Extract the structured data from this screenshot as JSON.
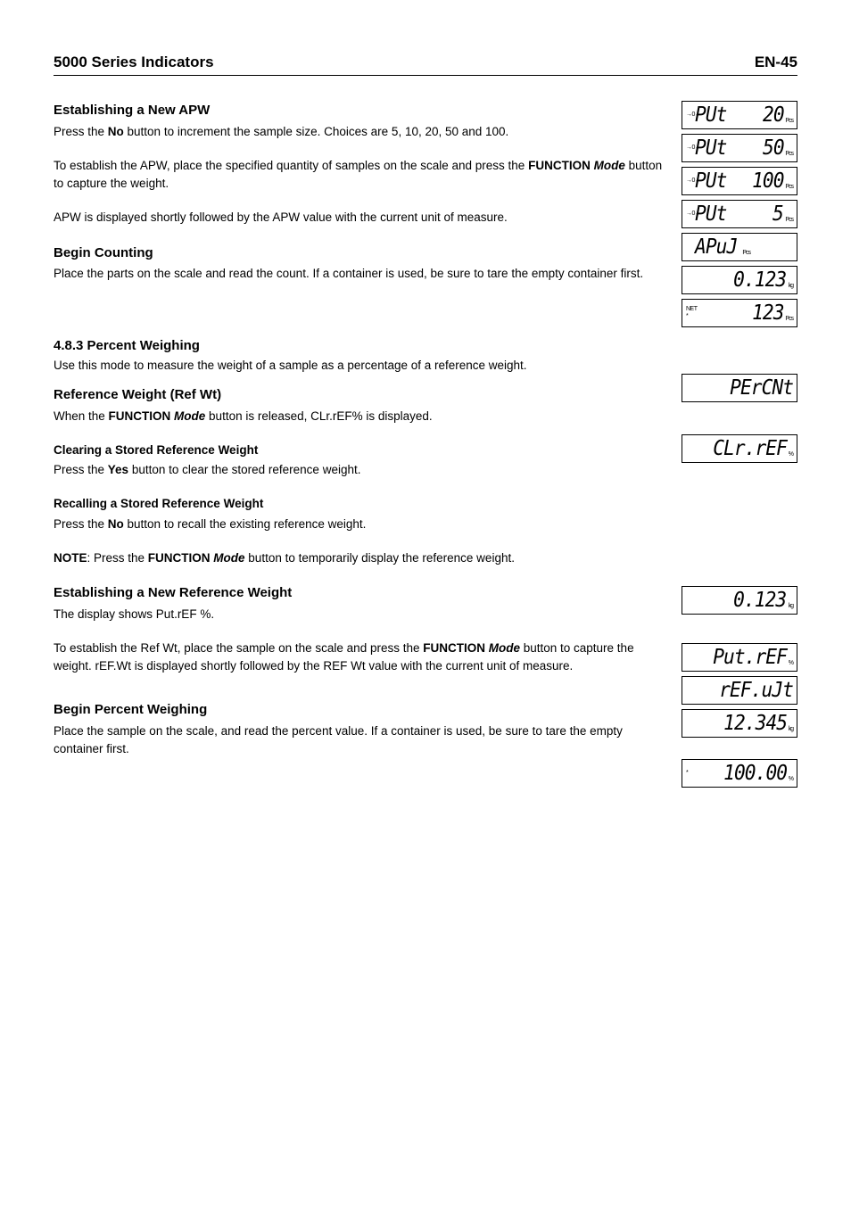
{
  "header": {
    "title": "5000 Series Indicators",
    "page": "EN-45"
  },
  "sections": {
    "apw": {
      "heading": "Establishing a New APW",
      "p1a": "Press the ",
      "p1b": "No",
      "p1c": " button to increment the sample size.  Choices are 5, 10, 20, 50 and 100.",
      "p2a": "To establish the APW, place the specified quantity of samples on the scale and press the ",
      "p2b": "FUNCTION ",
      "p2c": "Mode",
      "p2d": " button to capture the weight.",
      "p3": "APW is displayed shortly followed by the APW value with the current unit of measure."
    },
    "count": {
      "heading": "Begin Counting",
      "p1": "Place the parts on the scale and read the count.  If a container is used, be sure to tare the empty container first."
    },
    "percent": {
      "heading": "4.8.3   Percent Weighing",
      "p1": "Use this mode to measure the weight of a sample as a percentage of a reference weight."
    },
    "refwt": {
      "heading": "Reference Weight (Ref Wt)",
      "p1a": "When the ",
      "p1b": "FUNCTION ",
      "p1c": "Mode",
      "p1d": " button is released, CLr.rEF% is displayed."
    },
    "clear": {
      "heading": "Clearing a Stored Reference Weight",
      "p1a": "Press the ",
      "p1b": "Yes",
      "p1c": " button to clear the stored reference weight."
    },
    "recall": {
      "heading": "Recalling a Stored Reference Weight",
      "p1a": "Press the ",
      "p1b": "No",
      "p1c": " button to recall the existing reference weight."
    },
    "note": {
      "label": "NOTE",
      "p1a": ": Press the ",
      "p1b": "FUNCTION ",
      "p1c": "Mode",
      "p1d": " button to temporarily display the reference weight."
    },
    "newref": {
      "heading": "Establishing a New Reference Weight",
      "p1": "The display shows Put.rEF %.",
      "p2a": "To establish the Ref Wt, place the sample on the scale and press the ",
      "p2b": "FUNCTION ",
      "p2c": "Mode",
      "p2d": " button to capture the weight.  rEF.Wt is displayed shortly followed by the REF Wt value with the current unit of measure."
    },
    "beginpct": {
      "heading": "Begin Percent Weighing",
      "p1": "Place the sample on the scale, and read the percent value.  If a container is used, be sure to tare the empty container first."
    }
  },
  "displays": [
    {
      "left": "→0←",
      "text": "PUt  20",
      "unit": "Pcs",
      "spread": true,
      "leftPart": "PUt",
      "rightPart": "20"
    },
    {
      "left": "→0←",
      "text": "PUt  50",
      "unit": "Pcs",
      "spread": true,
      "leftPart": "PUt",
      "rightPart": "50"
    },
    {
      "left": "→0←",
      "text": "PUt 100",
      "unit": "Pcs",
      "spread": true,
      "leftPart": "PUt",
      "rightPart": "100"
    },
    {
      "left": "→0←",
      "text": "PUt   5",
      "unit": "Pcs",
      "spread": true,
      "leftPart": "PUt",
      "rightPart": "5"
    },
    {
      "left": "",
      "text": "APuJ",
      "unit": "Pcs",
      "spread": false,
      "align": "left"
    },
    {
      "left": "",
      "text": "0.123",
      "unit": "kg",
      "spread": false
    },
    {
      "left": "NET\n*",
      "text": "123",
      "unit": "Pcs",
      "spread": false
    }
  ],
  "displays2": [
    {
      "left": "",
      "text": "PErCNt",
      "unit": "",
      "spread": false
    },
    {
      "left": "",
      "text": "CLr.rEF",
      "unit": "%",
      "spread": false
    }
  ],
  "displays3": [
    {
      "left": "",
      "text": "0.123",
      "unit": "kg",
      "spread": false
    }
  ],
  "displays4": [
    {
      "left": "",
      "text": "Put.rEF",
      "unit": "%",
      "spread": false
    },
    {
      "left": "",
      "text": "rEF.uJt",
      "unit": "",
      "spread": false
    },
    {
      "left": "",
      "text": "12.345",
      "unit": "kg",
      "spread": false
    }
  ],
  "displays5": [
    {
      "left": "*",
      "text": "100.00",
      "unit": "%",
      "spread": false
    }
  ]
}
